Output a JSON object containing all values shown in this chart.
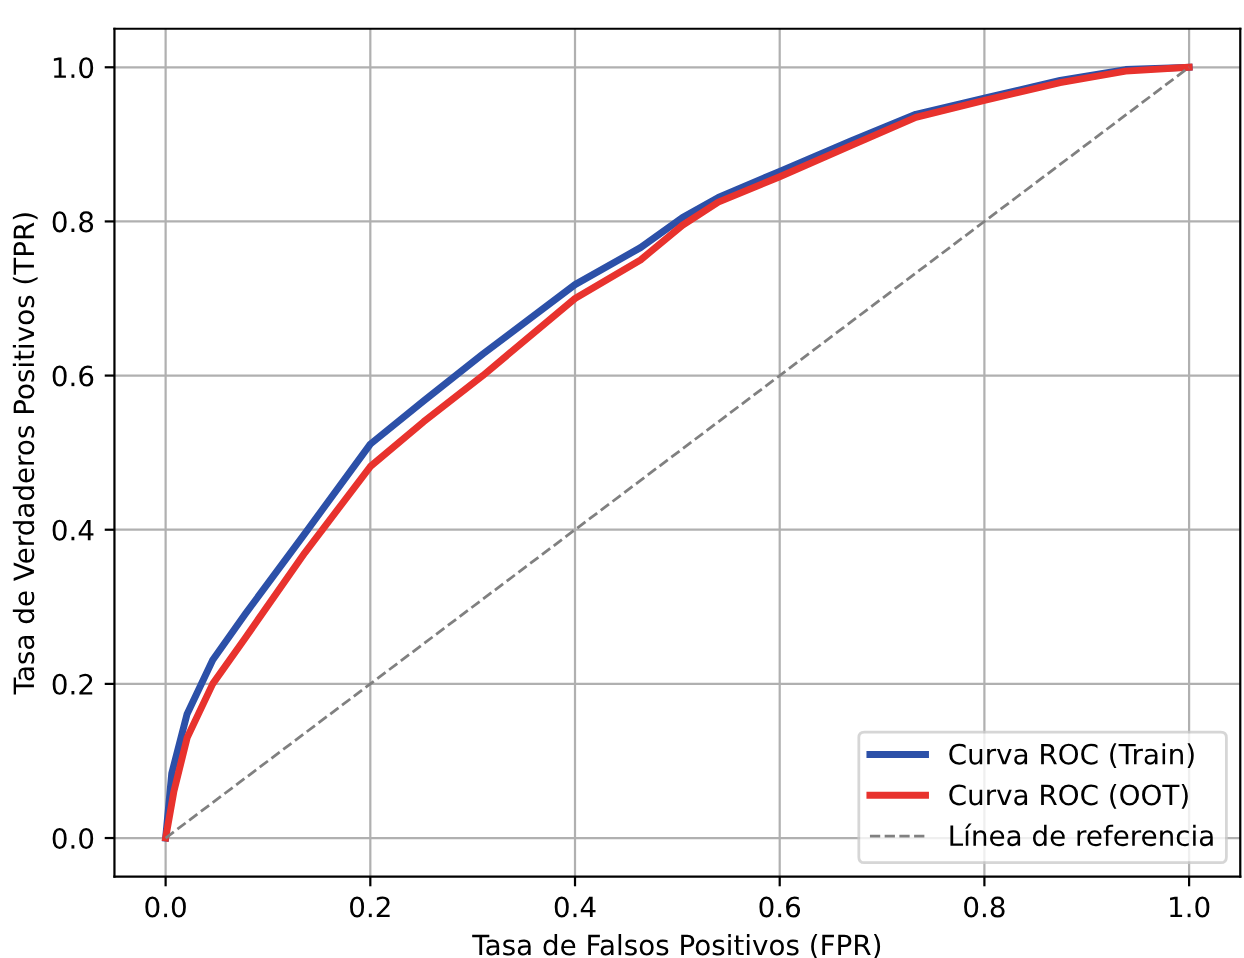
{
  "chart_data": {
    "type": "line",
    "xlabel": "Tasa de Falsos Positivos (FPR)",
    "ylabel": "Tasa de Verdaderos Positivos (TPR)",
    "xlim": [
      -0.05,
      1.05
    ],
    "ylim": [
      -0.05,
      1.05
    ],
    "xticks": [
      {
        "value": 0,
        "label": "0.0"
      },
      0.2,
      0.4,
      0.6,
      0.8,
      {
        "value": 1,
        "label": "1.0"
      }
    ],
    "yticks": [
      {
        "value": 0,
        "label": "0.0"
      },
      0.2,
      0.4,
      0.6,
      0.8,
      {
        "value": 1,
        "label": "1.0"
      }
    ],
    "grid": true,
    "legend": "bottom right",
    "marker": "none",
    "series": [
      {
        "name": "Curva ROC (Train)",
        "color": "#2c50a8",
        "line_style": "solid",
        "x": [
          0,
          0.006,
          0.021,
          0.046,
          0.078,
          0.136,
          0.2,
          0.252,
          0.31,
          0.4,
          0.464,
          0.505,
          0.54,
          0.6,
          0.669,
          0.733,
          0.8,
          0.874,
          0.938,
          1
        ],
        "values": [
          0,
          0.084,
          0.161,
          0.231,
          0.291,
          0.395,
          0.511,
          0.567,
          0.628,
          0.718,
          0.766,
          0.805,
          0.831,
          0.865,
          0.904,
          0.939,
          0.96,
          0.983,
          0.997,
          1
        ]
      },
      {
        "name": "Curva ROC (OOT)",
        "color": "#e8322d",
        "line_style": "solid",
        "x": [
          0,
          0.008,
          0.021,
          0.046,
          0.078,
          0.136,
          0.2,
          0.252,
          0.31,
          0.4,
          0.464,
          0.505,
          0.54,
          0.6,
          0.669,
          0.733,
          0.8,
          0.874,
          0.938,
          1
        ],
        "values": [
          0,
          0.06,
          0.13,
          0.2,
          0.26,
          0.37,
          0.482,
          0.54,
          0.6,
          0.7,
          0.75,
          0.795,
          0.825,
          0.858,
          0.898,
          0.935,
          0.957,
          0.98,
          0.995,
          1
        ]
      },
      {
        "name": "Línea de referencia",
        "color": "#808080",
        "line_style": "dashed",
        "x": [
          0,
          1
        ],
        "values": [
          0,
          1
        ]
      }
    ]
  }
}
